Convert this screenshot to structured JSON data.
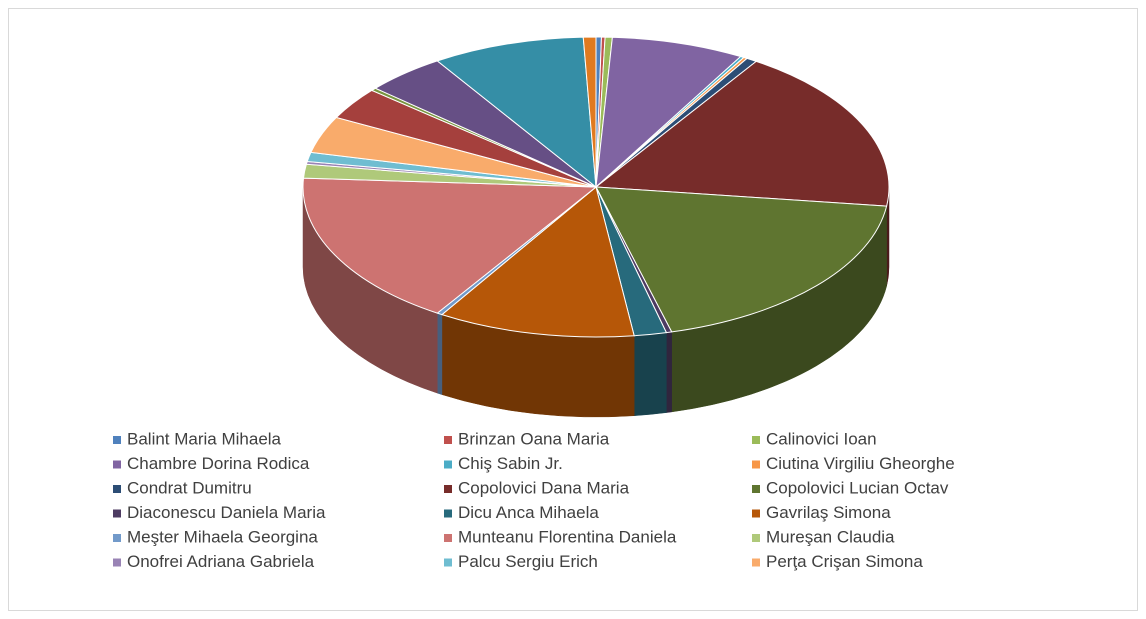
{
  "chart_data": {
    "type": "pie3d",
    "categories": [
      "Balint Maria Mihaela",
      "Brinzan Oana Maria",
      "Calinovici Ioan",
      "Chambre Dorina Rodica",
      "Chiş Sabin Jr.",
      "Ciutina Virgiliu Gheorghe",
      "Condrat Dumitru",
      "Copolovici Dana Maria",
      "Copolovici Lucian Octav",
      "Diaconescu Daniela Maria",
      "Dicu Anca Mihaela",
      "Gavrilaş Simona",
      "Meşter Mihaela Georgina",
      "Munteanu Florentina Daniela",
      "Mureşan Claudia",
      "Onofrei Adriana Gabriela",
      "Palcu Sergiu Erich",
      "Perţa Crişan Simona",
      null,
      null,
      null,
      null,
      null
    ],
    "values": [
      0.3,
      0.2,
      0.4,
      7.4,
      0.2,
      0.2,
      0.6,
      18,
      19,
      0.3,
      1.8,
      11,
      0.3,
      17,
      1.5,
      0.3,
      1,
      4,
      3.5,
      0.3,
      4.5,
      8.5,
      0.7
    ],
    "colors": [
      "#4f81bd",
      "#c0504d",
      "#9bbb59",
      "#8064a2",
      "#4bacc6",
      "#f79646",
      "#2c4d75",
      "#772c2a",
      "#5f7530",
      "#4d3b62",
      "#276a7c",
      "#b65708",
      "#729aca",
      "#cd7371",
      "#afc97a",
      "#9983b5",
      "#6fbdd1",
      "#f9ab6b",
      "#a5403d",
      "#799540",
      "#664f85",
      "#358ea6",
      "#e07a20"
    ],
    "legend": "bottom"
  }
}
